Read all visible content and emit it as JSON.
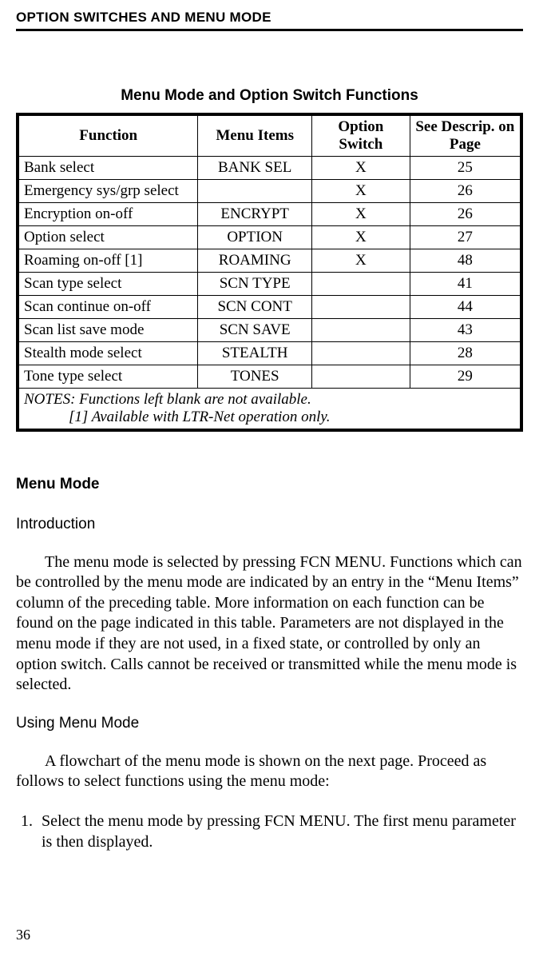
{
  "runningHead": "OPTION SWITCHES AND MENU MODE",
  "tableTitle": "Menu Mode and Option Switch Functions",
  "columns": {
    "function": "Function",
    "menuItems": "Menu Items",
    "optionSwitch": "Option Switch",
    "seePage": "See Descrip. on Page"
  },
  "rows": [
    {
      "function": "Bank select",
      "menuItems": "BANK SEL",
      "option": "X",
      "page": "25"
    },
    {
      "function": "Emergency sys/grp select",
      "menuItems": "",
      "option": "X",
      "page": "26"
    },
    {
      "function": "Encryption on-off",
      "menuItems": "ENCRYPT",
      "option": "X",
      "page": "26"
    },
    {
      "function": "Option select",
      "menuItems": "OPTION",
      "option": "X",
      "page": "27"
    },
    {
      "function": "Roaming on-off [1]",
      "menuItems": "ROAMING",
      "option": "X",
      "page": "48"
    },
    {
      "function": "Scan type select",
      "menuItems": "SCN TYPE",
      "option": "",
      "page": "41"
    },
    {
      "function": "Scan continue on-off",
      "menuItems": "SCN CONT",
      "option": "",
      "page": "44"
    },
    {
      "function": "Scan list save mode",
      "menuItems": "SCN SAVE",
      "option": "",
      "page": "43"
    },
    {
      "function": "Stealth mode select",
      "menuItems": "STEALTH",
      "option": "",
      "page": "28"
    },
    {
      "function": "Tone type select",
      "menuItems": "TONES",
      "option": "",
      "page": "29"
    }
  ],
  "notesLine1": "NOTES: Functions left blank are not available.",
  "notesLine2": "[1] Available with LTR-Net operation only.",
  "headings": {
    "menuMode": "Menu Mode",
    "introduction": "Introduction",
    "usingMenuMode": "Using Menu Mode"
  },
  "paragraphs": {
    "intro": "The menu mode is selected by pressing FCN MENU. Functions which can be controlled by the menu mode are indicated by an entry in the “Menu Items” column of the preceding table. More information on each function can be found on the page indicated in this table. Parameters are not displayed in the menu mode if they are not used, in a fixed state, or controlled by only an option switch. Calls cannot be received or trans­mitted while the menu mode is selected.",
    "using": "A flowchart of the menu mode is shown on the next page. Proceed as follows to select functions using the menu mode:"
  },
  "step1": "Select the menu mode by pressing FCN MENU. The first menu param­eter is then displayed.",
  "pageNumber": "36"
}
